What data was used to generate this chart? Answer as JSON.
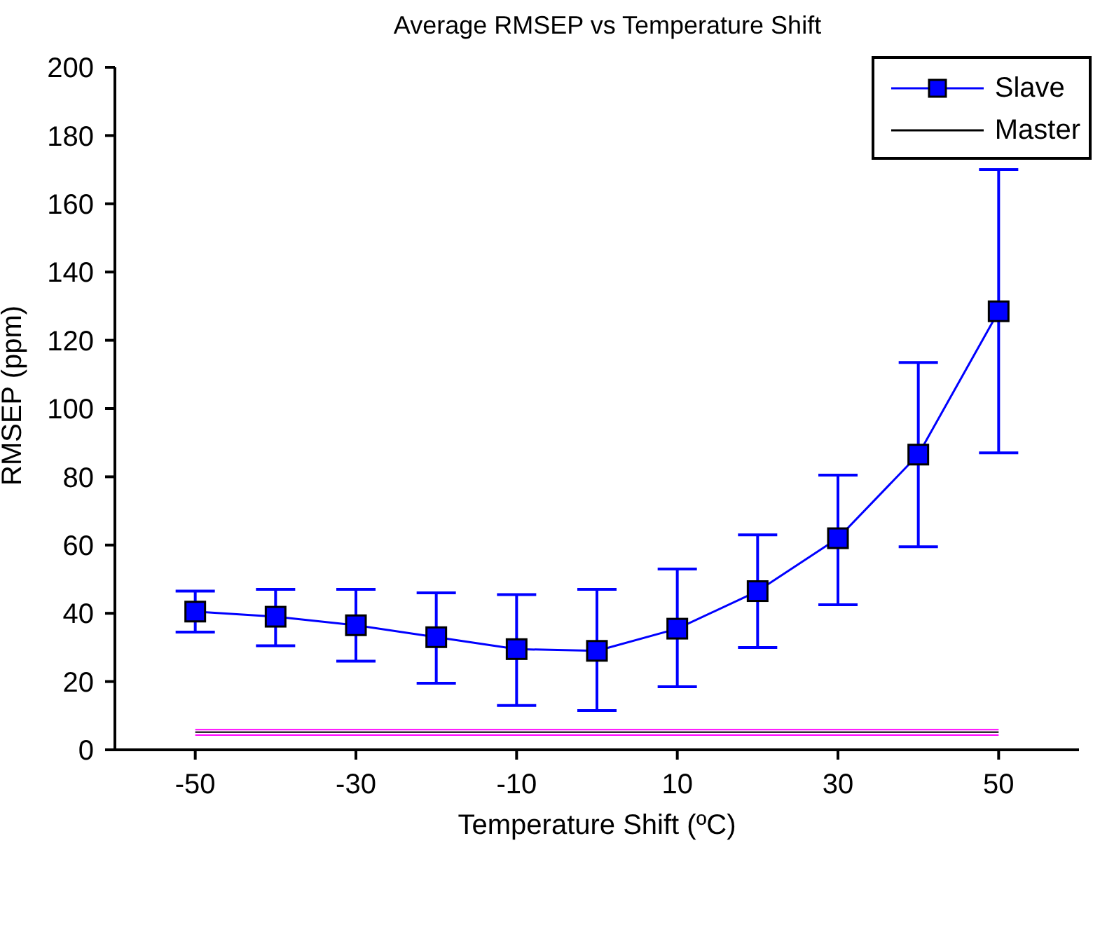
{
  "chart_data": {
    "type": "line",
    "title": "Average RMSEP vs Temperature Shift",
    "xlabel": "Temperature Shift (ºC)",
    "ylabel": "RMSEP (ppm)",
    "x": [
      -50,
      -40,
      -30,
      -20,
      -10,
      0,
      10,
      20,
      30,
      40,
      50
    ],
    "series": [
      {
        "name": "Slave",
        "color": "#0000ff",
        "marker": "square",
        "values": [
          40.5,
          39,
          36.5,
          33,
          29.5,
          29,
          35.5,
          46.5,
          62,
          86.5,
          128.5
        ],
        "errors": [
          [
            34.5,
            46.5
          ],
          [
            30.5,
            47
          ],
          [
            26,
            47
          ],
          [
            19.5,
            46
          ],
          [
            13,
            45.5
          ],
          [
            11.5,
            47
          ],
          [
            18.5,
            53
          ],
          [
            30,
            63
          ],
          [
            42.5,
            80.5
          ],
          [
            59.5,
            113.5
          ],
          [
            87,
            170
          ]
        ]
      },
      {
        "color": "#ff00ff",
        "marker": "none",
        "values": [
          5.9,
          5.9,
          5.9,
          5.9,
          5.9,
          5.9,
          5.9,
          5.9,
          5.9,
          5.9,
          5.9
        ]
      },
      {
        "color": "#ff00ff",
        "marker": "none",
        "values": [
          4.3,
          4.3,
          4.3,
          4.3,
          4.3,
          4.3,
          4.3,
          4.3,
          4.3,
          4.3,
          4.3
        ]
      },
      {
        "name": "Master",
        "color": "#000000",
        "marker": "none",
        "values": [
          5.2,
          5.2,
          5.2,
          5.2,
          5.2,
          5.2,
          5.2,
          5.2,
          5.2,
          5.2,
          5.2
        ]
      }
    ],
    "xlim": [
      -60,
      60
    ],
    "xticks": [
      -50,
      -30,
      -10,
      10,
      30,
      50
    ],
    "ylim": [
      0,
      200
    ],
    "yticks": [
      0,
      20,
      40,
      60,
      80,
      100,
      120,
      140,
      160,
      180,
      200
    ],
    "grid": false,
    "legend": "top right"
  }
}
